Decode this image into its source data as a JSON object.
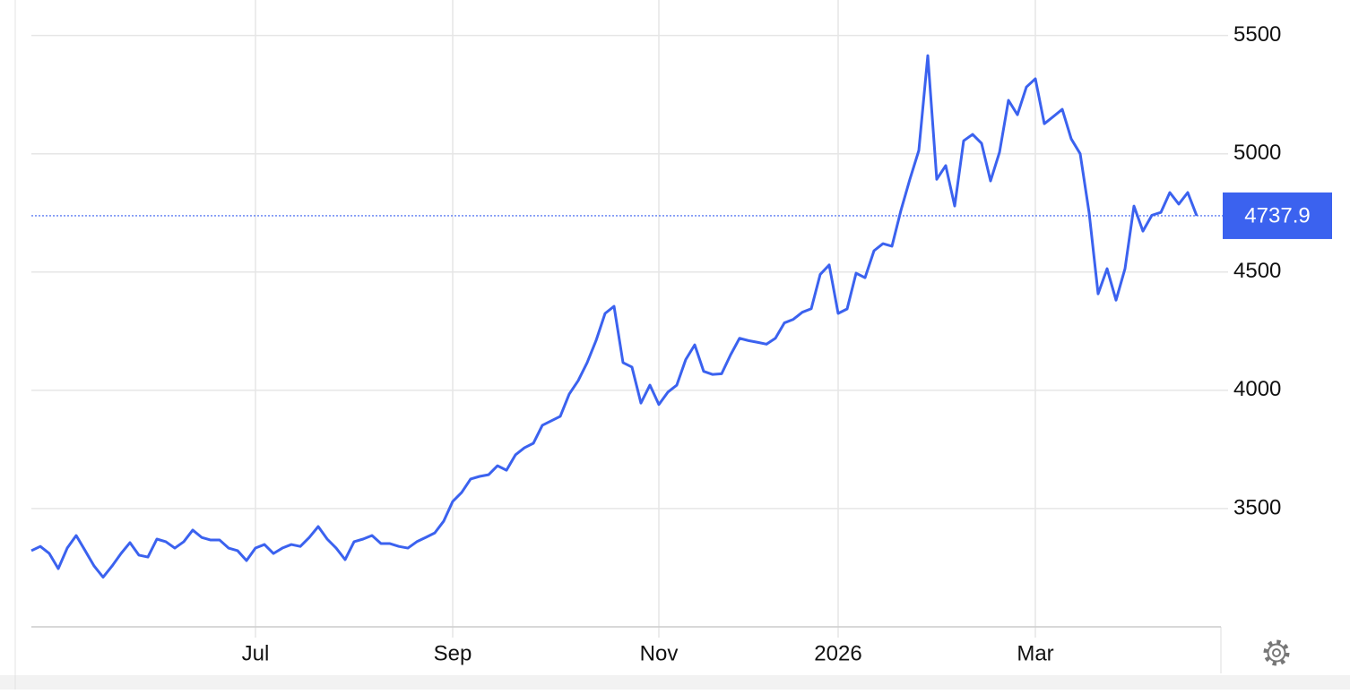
{
  "chart_data": {
    "type": "line",
    "categories": [
      null,
      null,
      null,
      null,
      null,
      null,
      null,
      null,
      null,
      null,
      null,
      null,
      null,
      null,
      null,
      null,
      null,
      null,
      null,
      null,
      null,
      null,
      null,
      null,
      null,
      "Jul",
      null,
      null,
      null,
      null,
      null,
      null,
      null,
      null,
      null,
      null,
      null,
      null,
      null,
      null,
      null,
      null,
      null,
      null,
      null,
      null,
      null,
      "Sep",
      null,
      null,
      null,
      null,
      null,
      null,
      null,
      null,
      null,
      null,
      null,
      null,
      null,
      null,
      null,
      null,
      null,
      null,
      null,
      null,
      null,
      null,
      "Nov",
      null,
      null,
      null,
      null,
      null,
      null,
      null,
      null,
      null,
      null,
      null,
      null,
      null,
      null,
      null,
      null,
      null,
      null,
      null,
      "2026",
      null,
      null,
      null,
      null,
      null,
      null,
      null,
      null,
      null,
      null,
      null,
      null,
      null,
      null,
      null,
      null,
      null,
      null,
      null,
      null,
      null,
      "Mar",
      null,
      null,
      null,
      null,
      null,
      null,
      null,
      null,
      null,
      null,
      null,
      null,
      null,
      null,
      null,
      null,
      null,
      null
    ],
    "values": [
      3322,
      3340,
      3310,
      3246,
      3333,
      3386,
      3322,
      3257,
      3210,
      3257,
      3310,
      3356,
      3303,
      3295,
      3371,
      3360,
      3333,
      3360,
      3409,
      3378,
      3367,
      3367,
      3333,
      3322,
      3280,
      3333,
      3348,
      3310,
      3333,
      3348,
      3340,
      3378,
      3424,
      3371,
      3333,
      3284,
      3360,
      3371,
      3386,
      3352,
      3352,
      3340,
      3333,
      3360,
      3378,
      3397,
      3447,
      3530,
      3568,
      3625,
      3636,
      3643,
      3681,
      3662,
      3727,
      3757,
      3776,
      3852,
      3871,
      3890,
      3984,
      4041,
      4117,
      4211,
      4325,
      4355,
      4117,
      4098,
      3946,
      4022,
      3940,
      3992,
      4022,
      4130,
      4192,
      4080,
      4067,
      4070,
      4150,
      4220,
      4210,
      4203,
      4195,
      4220,
      4285,
      4300,
      4330,
      4345,
      4490,
      4530,
      4325,
      4344,
      4495,
      4476,
      4590,
      4620,
      4609,
      4760,
      4892,
      5014,
      5415,
      4892,
      4950,
      4779,
      5055,
      5082,
      5044,
      4885,
      5006,
      5226,
      5165,
      5282,
      5317,
      5127,
      5157,
      5188,
      5063,
      5000,
      4750,
      4408,
      4514,
      4381,
      4514,
      4779,
      4673,
      4740,
      4752,
      4836,
      4787,
      4836,
      4737.9
    ],
    "color": "#3b62ef",
    "ylim": [
      3000,
      5650
    ],
    "yticks": [
      3500,
      4000,
      4500,
      5000,
      5500
    ],
    "grid": true
  }
}
